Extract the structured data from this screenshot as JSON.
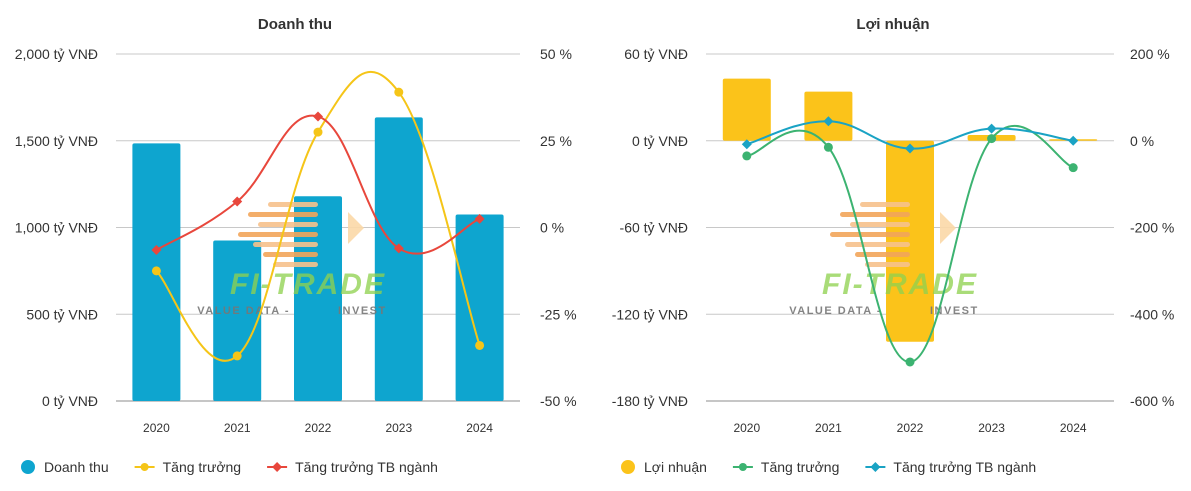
{
  "charts": [
    {
      "type": "bar",
      "title": "Doanh thu",
      "categories": [
        "2020",
        "2021",
        "2022",
        "2023",
        "2024"
      ],
      "bar_series": {
        "name": "Doanh thu",
        "color": "#0ea5cf",
        "values": [
          1485,
          925,
          1180,
          1635,
          1075
        ]
      },
      "line_series": [
        {
          "name": "Tăng trưởng",
          "color": "#f5c518",
          "marker": "circle",
          "values": [
            -12.5,
            -37,
            27.5,
            39,
            -34
          ]
        },
        {
          "name": "Tăng trưởng TB ngành",
          "color": "#e8473c",
          "marker": "diamond",
          "values": [
            -6.5,
            7.5,
            32,
            -6,
            2.5
          ]
        }
      ],
      "y_left": {
        "min": 0,
        "max": 2000,
        "ticks": [
          0,
          500,
          1000,
          1500,
          2000
        ],
        "labels": [
          "0 tỷ VNĐ",
          "500 tỷ VNĐ",
          "1,000 tỷ VNĐ",
          "1,500 tỷ VNĐ",
          "2,000 tỷ VNĐ"
        ]
      },
      "y_right": {
        "min": -50,
        "max": 50,
        "ticks": [
          -50,
          -25,
          0,
          25,
          50
        ],
        "labels": [
          "-50 %",
          "-25 %",
          "0 %",
          "25 %",
          "50 %"
        ]
      },
      "legend_position": "bottom-left",
      "grid": true
    },
    {
      "type": "bar",
      "title": "Lợi nhuận",
      "categories": [
        "2020",
        "2021",
        "2022",
        "2023",
        "2024"
      ],
      "bar_series": {
        "name": "Lợi nhuận",
        "color": "#fbc31a",
        "values": [
          43,
          34,
          -139,
          4,
          1
        ]
      },
      "line_series": [
        {
          "name": "Tăng trưởng",
          "color": "#3cb371",
          "marker": "circle",
          "values": [
            -35,
            -15,
            -510,
            5,
            -62
          ]
        },
        {
          "name": "Tăng trưởng TB ngành",
          "color": "#1aa3c4",
          "marker": "diamond",
          "values": [
            -8,
            45,
            -18,
            28,
            0
          ]
        }
      ],
      "y_left": {
        "min": -180,
        "max": 60,
        "ticks": [
          -180,
          -120,
          -60,
          0,
          60
        ],
        "labels": [
          "-180 tỷ VNĐ",
          "-120 tỷ VNĐ",
          "-60 tỷ VNĐ",
          "0 tỷ VNĐ",
          "60 tỷ VNĐ"
        ]
      },
      "y_right": {
        "min": -600,
        "max": 200,
        "ticks": [
          -600,
          -400,
          -200,
          0,
          200
        ],
        "labels": [
          "-600 %",
          "-400 %",
          "-200 %",
          "0 %",
          "200 %"
        ]
      },
      "legend_position": "bottom-left",
      "grid": true
    }
  ],
  "watermark": {
    "brand": "FI-TRADE",
    "tagline_left": "VALUE DATA -",
    "tagline_right": "INVEST"
  }
}
